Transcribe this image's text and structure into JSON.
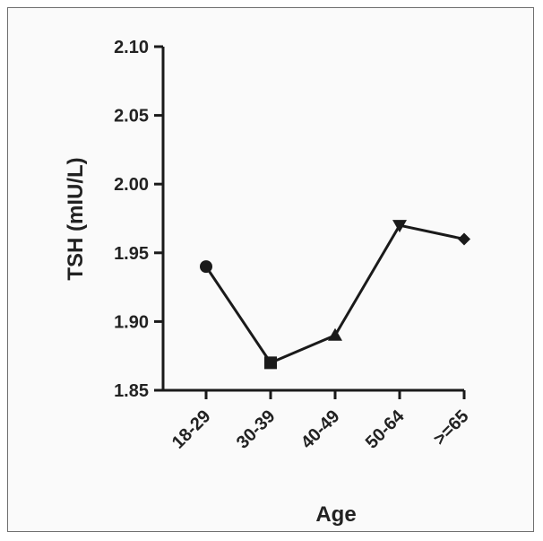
{
  "chart_data": {
    "type": "line",
    "title": "",
    "xlabel": "Age",
    "ylabel": "TSH (mIU/L)",
    "categories": [
      "18-29",
      "30-39",
      "40-49",
      "50-64",
      ">=65"
    ],
    "series": [
      {
        "values": [
          1.94,
          1.87,
          1.89,
          1.97,
          1.96
        ],
        "markers": [
          "circle",
          "square",
          "triangle-up",
          "triangle-down",
          "diamond"
        ]
      }
    ],
    "ylim": [
      1.85,
      2.1
    ],
    "yticks": [
      1.85,
      1.9,
      1.95,
      2.0,
      2.05,
      2.1
    ],
    "ytick_labels": [
      "1.85",
      "1.90",
      "1.95",
      "2.00",
      "2.05",
      "2.10"
    ],
    "grid": false,
    "colors": {
      "line": "#1a1a1a",
      "marker": "#1a1a1a",
      "axis": "#1a1a1a"
    }
  }
}
